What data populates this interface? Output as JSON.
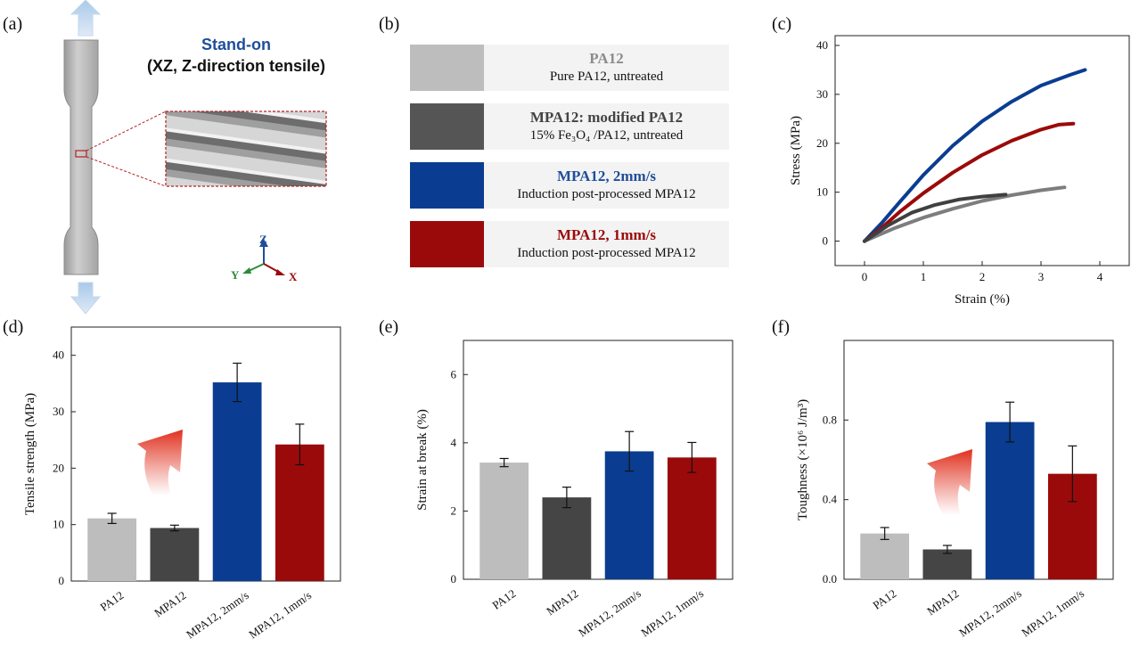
{
  "panel_labels": {
    "a": "(a)",
    "b": "(b)",
    "c": "(c)",
    "d": "(d)",
    "e": "(e)",
    "f": "(f)"
  },
  "colors": {
    "pa12": "#bdbdbd",
    "mpa12": "#454545",
    "mpa12_2mm": "#0a3d91",
    "mpa12_1mm": "#9b0a0a",
    "series_gray": "#7d7d7d",
    "series_dark": "#404040"
  },
  "panel_a": {
    "title_line1": "Stand-on",
    "title_line2": "(XZ, Z-direction tensile)",
    "axis_z": "Z",
    "axis_y": "Y",
    "axis_x": "X"
  },
  "legend": [
    {
      "title": "PA12",
      "subtitle": "Pure PA12, untreated",
      "color": "#bdbdbd",
      "title_color": "#8c8c8c"
    },
    {
      "title": "MPA12: modified PA12",
      "subtitle": "15% Fe₃O₄ /PA12, untreated",
      "color": "#555555",
      "title_color": "#444444"
    },
    {
      "title": "MPA12, 2mm/s",
      "subtitle": "Induction post-processed MPA12",
      "color": "#0a3d91",
      "title_color": "#1f4e9a"
    },
    {
      "title": "MPA12, 1mm/s",
      "subtitle": "Induction post-processed MPA12",
      "color": "#9b0a0a",
      "title_color": "#9b0a0a"
    }
  ],
  "chart_data": [
    {
      "type": "line",
      "panel": "(c)",
      "xlabel": "Strain (%)",
      "ylabel": "Stress  (MPa)",
      "xlim": [
        -0.5,
        4.5
      ],
      "ylim": [
        -5,
        42
      ],
      "xticks": [
        0,
        1,
        2,
        3,
        4
      ],
      "yticks": [
        0,
        10,
        20,
        30,
        40
      ],
      "series": [
        {
          "color": "#0a3d91",
          "x": [
            0,
            0.3,
            0.6,
            1.0,
            1.5,
            2.0,
            2.5,
            3.0,
            3.5,
            3.75
          ],
          "y": [
            0,
            3.8,
            8.0,
            13.5,
            19.5,
            24.5,
            28.5,
            31.8,
            34.0,
            35.0
          ]
        },
        {
          "color": "#9b0a0a",
          "x": [
            0,
            0.3,
            0.6,
            1.0,
            1.5,
            2.0,
            2.5,
            3.0,
            3.3,
            3.55
          ],
          "y": [
            0,
            2.8,
            6.0,
            9.8,
            14.0,
            17.6,
            20.5,
            22.8,
            23.8,
            24.0
          ]
        },
        {
          "color": "#7d7d7d",
          "x": [
            0,
            0.5,
            1.0,
            1.5,
            2.0,
            2.5,
            3.0,
            3.4
          ],
          "y": [
            0,
            2.6,
            4.8,
            6.6,
            8.2,
            9.4,
            10.4,
            11.0
          ]
        },
        {
          "color": "#404040",
          "x": [
            0,
            0.4,
            0.8,
            1.2,
            1.6,
            2.0,
            2.4
          ],
          "y": [
            0,
            3.2,
            5.8,
            7.4,
            8.5,
            9.1,
            9.5
          ]
        }
      ]
    },
    {
      "type": "bar",
      "panel": "(d)",
      "ylabel": "Tensile strength (MPa)",
      "categories": [
        "PA12",
        "MPA12",
        "MPA12, 2mm/s",
        "MPA12, 1mm/s"
      ],
      "values": [
        11.1,
        9.4,
        35.2,
        24.2
      ],
      "errors": [
        0.9,
        0.5,
        3.4,
        3.6
      ],
      "colors": [
        "#bdbdbd",
        "#454545",
        "#0a3d91",
        "#9b0a0a"
      ],
      "ylim": [
        0,
        45
      ],
      "yticks": [
        0,
        10,
        20,
        30,
        40
      ]
    },
    {
      "type": "bar",
      "panel": "(e)",
      "ylabel": "Strain at break (%)",
      "categories": [
        "PA12",
        "MPA12",
        "MPA12, 2mm/s",
        "MPA12, 1mm/s"
      ],
      "values": [
        3.42,
        2.4,
        3.75,
        3.57
      ],
      "errors": [
        0.12,
        0.3,
        0.58,
        0.44
      ],
      "colors": [
        "#bdbdbd",
        "#454545",
        "#0a3d91",
        "#9b0a0a"
      ],
      "ylim": [
        0,
        7
      ],
      "yticks": [
        0,
        2,
        4,
        6
      ]
    },
    {
      "type": "bar",
      "panel": "(f)",
      "ylabel": "Toughness (×10⁶ J/m³)",
      "categories": [
        "PA12",
        "MPA12",
        "MPA12, 2mm/s",
        "MPA12, 1mm/s"
      ],
      "values": [
        0.23,
        0.15,
        0.79,
        0.53
      ],
      "errors": [
        0.03,
        0.02,
        0.1,
        0.14
      ],
      "colors": [
        "#bdbdbd",
        "#454545",
        "#0a3d91",
        "#9b0a0a"
      ],
      "ylim": [
        0,
        1.2
      ],
      "yticks": [
        0.0,
        0.4,
        0.8
      ],
      "ytick_labels": [
        "0.0",
        "0.4",
        "0.8"
      ]
    }
  ]
}
